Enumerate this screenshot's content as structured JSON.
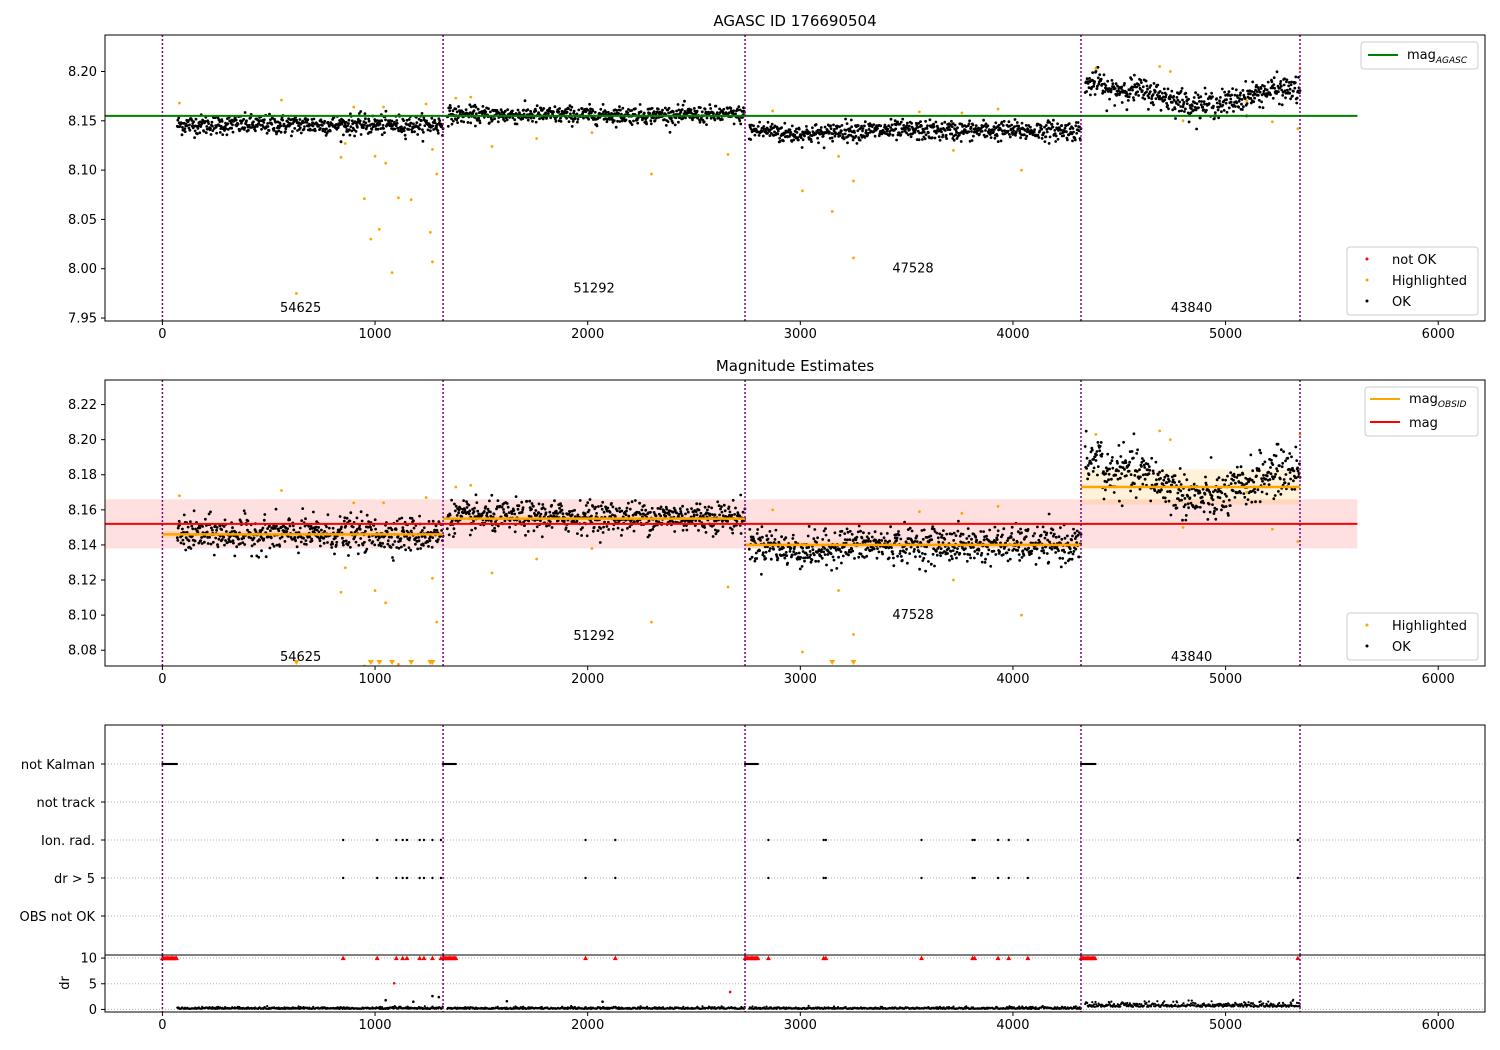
{
  "panel1": {
    "title": "AGASC ID 176690504",
    "legend": {
      "mag_line_label": "mag",
      "mag_line_sub": "AGASC",
      "not_ok": "not OK",
      "highlighted": "Highlighted",
      "ok": "OK"
    }
  },
  "panel2": {
    "title": "Magnitude Estimates",
    "legend": {
      "obsid_label": "mag",
      "obsid_sub": "OBSID",
      "mag_label": "mag",
      "highlighted": "Highlighted",
      "ok": "OK"
    }
  },
  "panel3": {
    "flags": [
      "not Kalman",
      "not track",
      "Ion. rad.",
      "dr > 5",
      "OBS not OK"
    ]
  },
  "panel4": {
    "ylabel": "dr"
  },
  "colors": {
    "ok": "#000000",
    "highlighted": "#ffa500",
    "not_ok": "#ff0000",
    "agasc_line": "#008000",
    "mag_line": "#ff0000",
    "obsid_line": "#ffa500",
    "boundary": "#800080"
  },
  "chart_data": [
    {
      "type": "scatter",
      "title": "AGASC ID 176690504",
      "xlim": [
        -270,
        6220
      ],
      "ylim": [
        7.947,
        8.237
      ],
      "xticks": [
        0,
        1000,
        2000,
        3000,
        4000,
        5000,
        6000
      ],
      "yticks": [
        7.95,
        8.0,
        8.05,
        8.1,
        8.15,
        8.2
      ],
      "reference_line": {
        "name": "mag_AGASC",
        "y": 8.155,
        "x_range": [
          -270,
          5620
        ]
      },
      "boundaries": [
        0,
        1320,
        2740,
        4320,
        5350
      ],
      "observations": [
        {
          "obsid": "54625",
          "x_range": [
            70,
            1320
          ],
          "center": 8.146,
          "spread": 0.009,
          "label_x": 650,
          "label_y": 7.96
        },
        {
          "obsid": "51292",
          "x_range": [
            1340,
            2740
          ],
          "center": 8.156,
          "spread": 0.008,
          "label_x": 2030,
          "label_y": 7.98
        },
        {
          "obsid": "47528",
          "x_range": [
            2760,
            4320
          ],
          "center": 8.14,
          "spread": 0.009,
          "label_x": 3530,
          "label_y": 8.0
        },
        {
          "obsid": "43840",
          "x_range": [
            4340,
            5350
          ],
          "center": 8.174,
          "spread": 0.012,
          "label_x": 4840,
          "label_y": 7.96
        }
      ],
      "highlighted_outliers": [
        [
          80,
          8.168
        ],
        [
          560,
          8.171
        ],
        [
          630,
          7.975
        ],
        [
          840,
          8.113
        ],
        [
          860,
          8.127
        ],
        [
          900,
          8.164
        ],
        [
          950,
          8.071
        ],
        [
          980,
          8.03
        ],
        [
          1000,
          8.114
        ],
        [
          1020,
          8.04
        ],
        [
          1040,
          8.164
        ],
        [
          1050,
          8.107
        ],
        [
          1080,
          7.996
        ],
        [
          1110,
          8.072
        ],
        [
          1170,
          8.07
        ],
        [
          1240,
          8.167
        ],
        [
          1260,
          8.037
        ],
        [
          1270,
          8.121
        ],
        [
          1270,
          8.007
        ],
        [
          1290,
          8.096
        ],
        [
          1380,
          8.173
        ],
        [
          1450,
          8.174
        ],
        [
          1550,
          8.124
        ],
        [
          1760,
          8.132
        ],
        [
          2020,
          8.138
        ],
        [
          2300,
          8.096
        ],
        [
          2660,
          8.116
        ],
        [
          2870,
          8.16
        ],
        [
          3010,
          8.079
        ],
        [
          3150,
          8.058
        ],
        [
          3180,
          8.114
        ],
        [
          3250,
          8.089
        ],
        [
          3250,
          8.011
        ],
        [
          3560,
          8.159
        ],
        [
          3760,
          8.158
        ],
        [
          3720,
          8.12
        ],
        [
          3930,
          8.162
        ],
        [
          4040,
          8.1
        ],
        [
          4390,
          8.203
        ],
        [
          4690,
          8.205
        ],
        [
          4740,
          8.2
        ],
        [
          4800,
          8.15
        ],
        [
          5100,
          8.17
        ],
        [
          5220,
          8.149
        ],
        [
          5340,
          8.142
        ],
        [
          5350,
          8.203
        ]
      ],
      "legend": [
        "not OK",
        "Highlighted",
        "OK"
      ]
    },
    {
      "type": "scatter",
      "title": "Magnitude Estimates",
      "xlim": [
        -270,
        6220
      ],
      "ylim": [
        8.071,
        8.234
      ],
      "xticks": [
        0,
        1000,
        2000,
        3000,
        4000,
        5000,
        6000
      ],
      "yticks": [
        8.08,
        8.1,
        8.12,
        8.14,
        8.16,
        8.18,
        8.2,
        8.22
      ],
      "mag_line": {
        "y": 8.152,
        "band": [
          8.138,
          8.166
        ],
        "x_range": [
          -270,
          5620
        ]
      },
      "obsid_lines": [
        {
          "x_range": [
            0,
            1320
          ],
          "y": 8.146,
          "band": [
            8.144,
            8.148
          ]
        },
        {
          "x_range": [
            1320,
            2740
          ],
          "y": 8.155,
          "band": [
            8.153,
            8.157
          ]
        },
        {
          "x_range": [
            2740,
            4320
          ],
          "y": 8.14,
          "band": [
            8.138,
            8.142
          ]
        },
        {
          "x_range": [
            4320,
            5350
          ],
          "y": 8.173,
          "band": [
            8.163,
            8.183
          ]
        }
      ],
      "boundaries": [
        0,
        1320,
        2740,
        4320,
        5350
      ],
      "obsid_labels": [
        {
          "text": "54625",
          "x": 650,
          "y": 8.076
        },
        {
          "text": "51292",
          "x": 2030,
          "y": 8.088
        },
        {
          "text": "47528",
          "x": 3530,
          "y": 8.1
        },
        {
          "text": "43840",
          "x": 4840,
          "y": 8.076
        }
      ],
      "legend": [
        "mag_OBSID",
        "mag",
        "Highlighted",
        "OK"
      ]
    },
    {
      "type": "scatter",
      "title": "",
      "xlim": [
        -270,
        6220
      ],
      "categories": [
        "not Kalman",
        "not track",
        "Ion. rad.",
        "dr > 5",
        "OBS not OK"
      ],
      "not_kalman_ranges": [
        [
          0,
          70
        ],
        [
          1320,
          1380
        ],
        [
          2740,
          2800
        ],
        [
          4320,
          4390
        ]
      ],
      "ion_rad_x": [
        850,
        1010,
        1100,
        1130,
        1150,
        1210,
        1230,
        1270,
        1310,
        1990,
        2130,
        2850,
        3110,
        3120,
        3570,
        3810,
        3820,
        3930,
        3980,
        4070,
        5340
      ],
      "dr5_x": [
        850,
        1010,
        1100,
        1130,
        1150,
        1210,
        1230,
        1270,
        1310,
        1990,
        2130,
        2850,
        3110,
        3120,
        3570,
        3810,
        3820,
        3930,
        3980,
        4070,
        5340
      ]
    },
    {
      "type": "scatter",
      "title": "",
      "xlim": [
        -270,
        6220
      ],
      "ylim": [
        -0.5,
        10.6
      ],
      "xticks": [
        0,
        1000,
        2000,
        3000,
        4000,
        5000,
        6000
      ],
      "yticks": [
        0,
        5,
        10
      ],
      "ylabel": "dr",
      "capped_value": 10,
      "extra_points": [
        [
          1090,
          5.1
        ],
        [
          2670,
          3.4
        ],
        [
          1270,
          2.6
        ],
        [
          1300,
          2.4
        ],
        [
          1620,
          1.6
        ],
        [
          2070,
          1.5
        ],
        [
          1050,
          1.8
        ],
        [
          1180,
          1.5
        ]
      ]
    }
  ]
}
